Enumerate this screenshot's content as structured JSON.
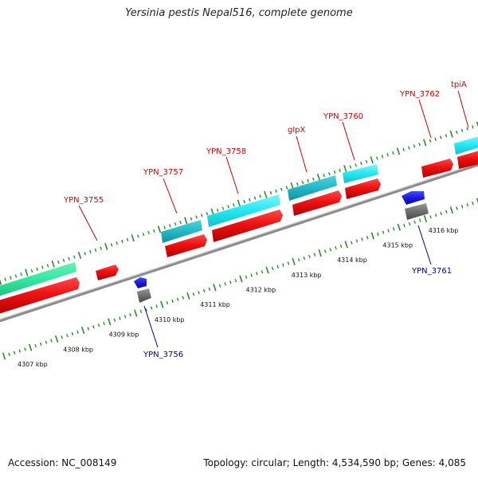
{
  "header": {
    "title": "Yersinia pestis Nepal516, complete genome"
  },
  "footer": {
    "accession": "Accession: NC_008149",
    "summary": "Topology: circular; Length: 4,534,590 bp; Genes: 4,085"
  },
  "colors": {
    "backbone": "#8c8c8c",
    "cds_forward": "#ee1111",
    "cds_reverse": "#1a1adc",
    "rna_teal": "#22b8c8",
    "rna_cyan": "#22e8f2",
    "rna_green": "#33e6a0",
    "pseudo_gray": "#6e6e6e",
    "tick": "#2b8a2b",
    "label_forward": "#cc0000",
    "label_reverse": "#00008b"
  },
  "scale": {
    "unit": "kbp",
    "ticks": [
      {
        "kbp": 4307,
        "label": "4307 kbp"
      },
      {
        "kbp": 4308,
        "label": "4308 kbp"
      },
      {
        "kbp": 4309,
        "label": "4309 kbp"
      },
      {
        "kbp": 4310,
        "label": "4310 kbp"
      },
      {
        "kbp": 4311,
        "label": "4311 kbp"
      },
      {
        "kbp": 4312,
        "label": "4312 kbp"
      },
      {
        "kbp": 4313,
        "label": "4313 kbp"
      },
      {
        "kbp": 4314,
        "label": "4314 kbp"
      },
      {
        "kbp": 4315,
        "label": "4315 kbp"
      },
      {
        "kbp": 4316,
        "label": "4316 kbp"
      }
    ]
  },
  "genes": {
    "forward_labels": [
      "YPN_3755",
      "YPN_3757",
      "YPN_3758",
      "glpX",
      "YPN_3760",
      "YPN_3762",
      "tpiA"
    ],
    "reverse_labels": [
      "YPN_3756",
      "YPN_3761"
    ]
  }
}
